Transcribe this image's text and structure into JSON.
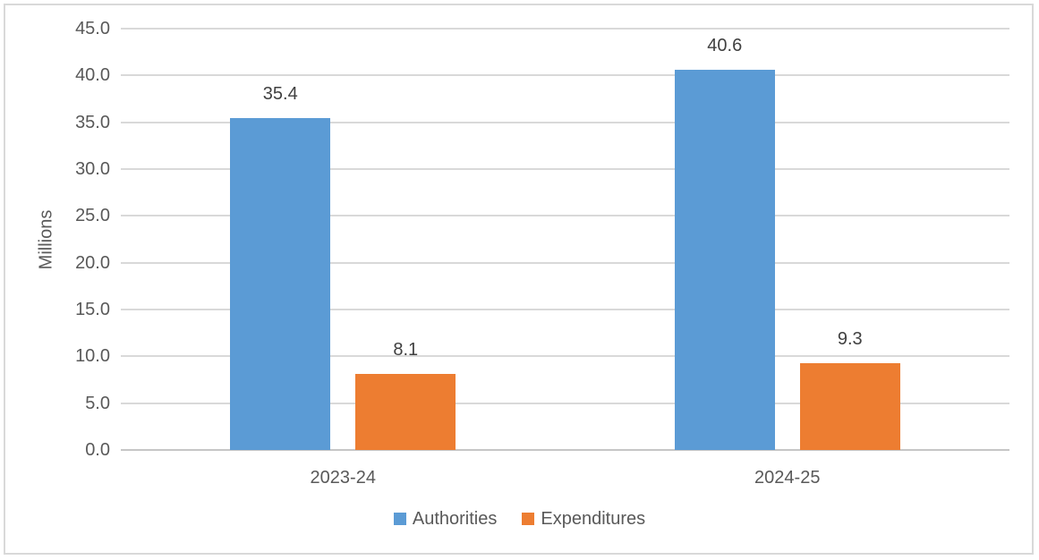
{
  "chart_data": {
    "type": "bar",
    "title": "",
    "categories": [
      "2023-24",
      "2024-25"
    ],
    "series": [
      {
        "name": "Authorities",
        "color": "#5B9BD5",
        "values": [
          35.4,
          40.6
        ]
      },
      {
        "name": "Expenditures",
        "color": "#ED7D31",
        "values": [
          8.1,
          9.3
        ]
      }
    ],
    "xlabel": "",
    "ylabel": "Millions",
    "ylim": [
      0,
      45
    ],
    "ytick_step": 5,
    "ytick_decimals": 1,
    "data_label_decimals": 1,
    "grid": true,
    "legend_position": "bottom",
    "data_labels": true
  }
}
